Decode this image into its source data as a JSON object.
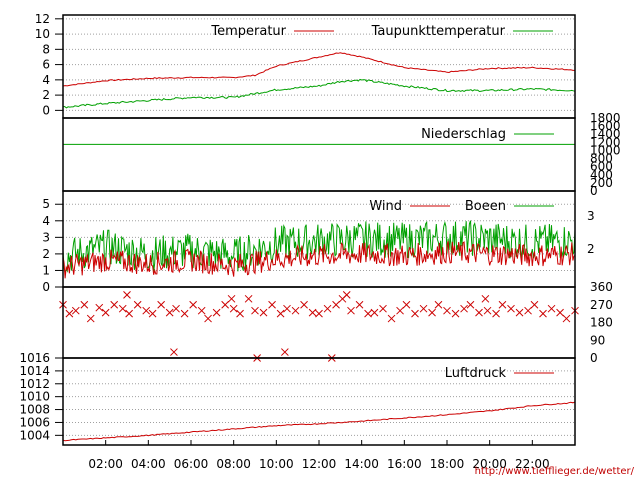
{
  "colors": {
    "red": "#cc0000",
    "green": "#00a000",
    "grid": "#a0a0a0",
    "frame": "#000000"
  },
  "source_url": "http://www.tiefflieger.de/wetter/",
  "x_axis": {
    "ticks": [
      "02:00",
      "04:00",
      "06:00",
      "08:00",
      "10:00",
      "12:00",
      "14:00",
      "16:00",
      "18:00",
      "20:00",
      "22:00"
    ]
  },
  "chart_data": [
    {
      "type": "line",
      "panel": "temperature",
      "legend": "top-right",
      "ylim": [
        -1,
        12.5
      ],
      "y_ticks": [
        "12",
        "10",
        "8",
        "6",
        "4",
        "2",
        "0"
      ],
      "grid": true,
      "x": [
        0,
        2,
        4,
        6,
        8,
        9,
        10,
        12,
        13,
        14,
        16,
        18,
        20,
        22,
        24
      ],
      "series": [
        {
          "name": "Temperatur",
          "color": "red",
          "values": [
            3.2,
            3.9,
            4.2,
            4.3,
            4.3,
            4.6,
            5.8,
            7.0,
            7.6,
            7.0,
            5.6,
            5.0,
            5.5,
            5.6,
            5.3
          ]
        },
        {
          "name": "Taupunkttemperatur",
          "color": "green",
          "values": [
            0.4,
            0.9,
            1.3,
            1.7,
            1.7,
            2.2,
            2.7,
            3.2,
            3.8,
            4.0,
            3.2,
            2.6,
            2.6,
            2.8,
            2.6
          ]
        }
      ]
    },
    {
      "type": "line",
      "panel": "precipitation",
      "legend": "top-right",
      "ylim": [
        0,
        1800
      ],
      "y_ticks_right": [
        "1800",
        "1600",
        "1400",
        "1200",
        "1000",
        "800",
        "600",
        "400",
        "200",
        "0"
      ],
      "x": [
        0,
        24
      ],
      "series": [
        {
          "name": "Niederschlag",
          "color": "green",
          "values": [
            1150,
            1150
          ]
        }
      ]
    },
    {
      "type": "line",
      "panel": "wind",
      "legend": "top-right",
      "ylim": [
        0,
        5.8
      ],
      "y_ticks": [
        "5",
        "4",
        "3",
        "2",
        "1",
        "0"
      ],
      "y_ticks_right": [
        "3",
        "2"
      ],
      "grid": true,
      "x": [
        0,
        2,
        4,
        6,
        8,
        10,
        12,
        14,
        16,
        18,
        20,
        22,
        24
      ],
      "series": [
        {
          "name": "Wind",
          "color": "red",
          "values": [
            1.2,
            1.6,
            1.4,
            1.6,
            1.3,
            1.7,
            1.9,
            2.0,
            1.9,
            2.1,
            2.0,
            1.9,
            2.0
          ]
        },
        {
          "name": "Boeen",
          "color": "green",
          "values": [
            1.8,
            2.4,
            2.0,
            2.2,
            1.9,
            2.6,
            2.8,
            2.9,
            2.8,
            3.0,
            2.9,
            2.7,
            2.8
          ]
        }
      ]
    },
    {
      "type": "scatter",
      "panel": "wind_direction",
      "ylim": [
        0,
        360
      ],
      "y_ticks_right": [
        "360",
        "270",
        "180",
        "90",
        "0"
      ],
      "marker": "x",
      "series": [
        {
          "name": "",
          "color": "red",
          "x": [
            0.0,
            0.3,
            0.6,
            1.0,
            1.3,
            1.7,
            2.0,
            2.4,
            2.8,
            3.1,
            3.5,
            3.9,
            4.2,
            4.6,
            5.0,
            5.3,
            5.7,
            6.1,
            6.5,
            6.8,
            7.2,
            7.6,
            8.0,
            8.3,
            8.7,
            9.0,
            9.4,
            9.8,
            10.2,
            10.5,
            10.9,
            11.3,
            11.7,
            12.0,
            12.4,
            12.8,
            13.1,
            13.5,
            13.9,
            14.3,
            14.6,
            15.0,
            15.4,
            15.8,
            16.1,
            16.5,
            16.9,
            17.3,
            17.6,
            18.0,
            18.4,
            18.8,
            19.1,
            19.5,
            19.9,
            20.3,
            20.6,
            21.0,
            21.4,
            21.8,
            22.1,
            22.5,
            22.9,
            23.3,
            23.6,
            24.0,
            5.2,
            9.1,
            10.4,
            12.6,
            3.0,
            7.9,
            13.3,
            19.8
          ],
          "y": [
            270,
            225,
            240,
            270,
            200,
            255,
            230,
            270,
            250,
            225,
            270,
            240,
            225,
            270,
            230,
            250,
            225,
            270,
            240,
            200,
            230,
            270,
            250,
            225,
            300,
            240,
            230,
            270,
            225,
            250,
            240,
            270,
            230,
            225,
            250,
            270,
            300,
            240,
            270,
            225,
            230,
            250,
            200,
            240,
            270,
            225,
            250,
            230,
            270,
            240,
            225,
            250,
            270,
            230,
            240,
            225,
            270,
            250,
            230,
            240,
            270,
            225,
            250,
            230,
            200,
            240,
            30,
            0,
            30,
            0,
            320,
            300,
            320,
            300
          ]
        }
      ]
    },
    {
      "type": "line",
      "panel": "pressure",
      "legend": "top-right",
      "ylim": [
        1002.5,
        1016
      ],
      "y_ticks": [
        "1016",
        "1014",
        "1012",
        "1010",
        "1008",
        "1006",
        "1004"
      ],
      "grid": true,
      "x": [
        0,
        2,
        4,
        6,
        8,
        10,
        12,
        14,
        16,
        18,
        20,
        22,
        24
      ],
      "series": [
        {
          "name": "Luftdruck",
          "color": "red",
          "values": [
            1003.2,
            1003.6,
            1004.0,
            1004.5,
            1005.0,
            1005.5,
            1005.8,
            1006.2,
            1006.7,
            1007.2,
            1007.8,
            1008.6,
            1009.1
          ]
        }
      ]
    }
  ]
}
